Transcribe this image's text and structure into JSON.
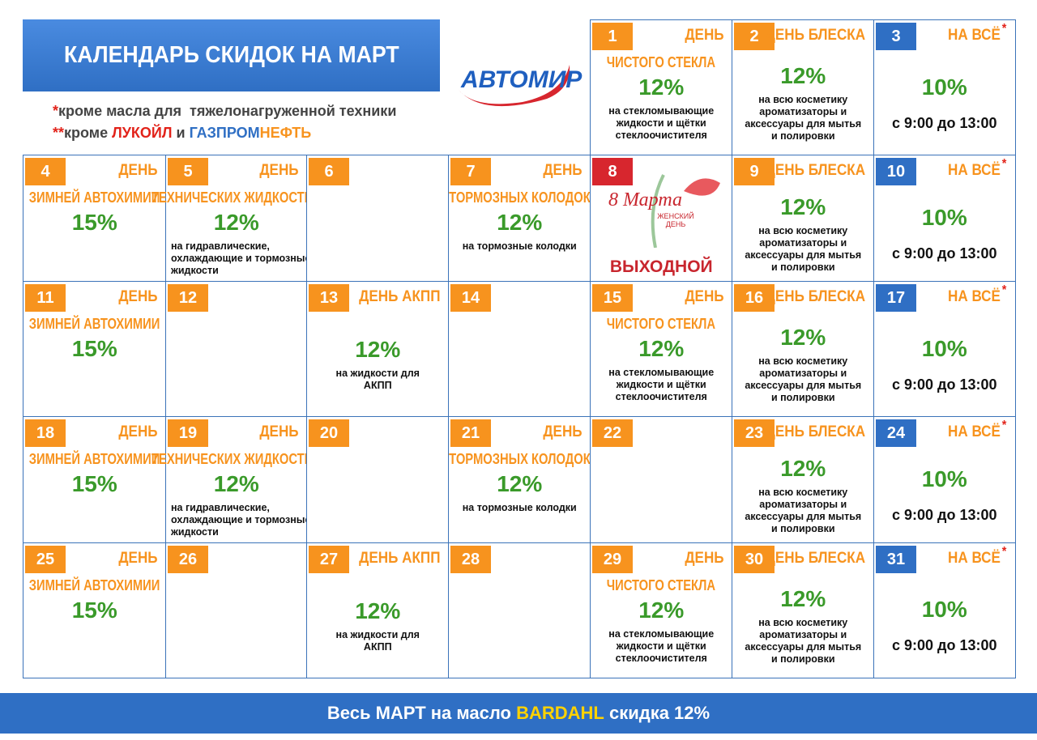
{
  "header": {
    "title": "КАЛЕНДАРЬ СКИДОК НА МАРТ",
    "logo": "АВТОМИР",
    "notes": [
      [
        "*",
        "кроме масла для  тяжелонагруженной техники"
      ],
      [
        "**",
        "кроме ",
        "ЛУКОЙЛ",
        " и ",
        "ГАЗПРОМ",
        "НЕФТЬ"
      ]
    ]
  },
  "calendar": {
    "cells": [
      {
        "day": "1",
        "color": "#f7931e",
        "head": "ДЕНЬ",
        "sub": "ЧИСТОГО СТЕКЛА",
        "pct": "12%",
        "desc": [
          "на стекломывающие",
          "жидкости и щётки",
          "стеклоочистителя"
        ]
      },
      {
        "day": "2",
        "color": "#f7931e",
        "head": "ДЕНЬ БЛЕСКА",
        "pct": "12%",
        "desc": [
          "на всю косметику",
          "ароматизаторы и",
          "аксессуары для мытья",
          "и полировки"
        ]
      },
      {
        "day": "3",
        "color": "#2f6fc4",
        "head": "НА ВСЁ",
        "mark": "*",
        "pct": "10%",
        "time": "с 9:00 до 13:00"
      },
      {
        "day": "4",
        "color": "#f7931e",
        "head": "ДЕНЬ",
        "sub": "ЗИМНЕЙ АВТОХИМИИ",
        "pct": "15%"
      },
      {
        "day": "5",
        "color": "#f7931e",
        "head": "ДЕНЬ",
        "sub": "ТЕХНИЧЕСКИХ ЖИДКОСТЕЙ",
        "pct": "12%",
        "desc": [
          "на гидравлические,",
          "охлаждающие и тормозные",
          "жидкости"
        ],
        "left": true
      },
      {
        "day": "6",
        "color": "#f7931e"
      },
      {
        "day": "7",
        "color": "#f7931e",
        "head": "ДЕНЬ",
        "sub": "ТОРМОЗНЫХ КОЛОДОК",
        "pct": "12%",
        "desc": [
          "на тормозные колодки"
        ]
      },
      {
        "day": "8",
        "color": "#d7262e",
        "art": [
          "8 Марта",
          "ЖЕНСКИЙ ДЕНЬ"
        ],
        "off": "ВЫХОДНОЙ"
      },
      {
        "day": "9",
        "color": "#f7931e",
        "head": "ДЕНЬ БЛЕСКА",
        "pct": "12%",
        "desc": [
          "на всю косметику",
          "ароматизаторы и",
          "аксессуары для мытья",
          "и полировки"
        ]
      },
      {
        "day": "10",
        "color": "#2f6fc4",
        "head": "НА ВСЁ",
        "mark": "*",
        "pct": "10%",
        "time": "с 9:00 до 13:00"
      },
      {
        "day": "11",
        "color": "#f7931e",
        "head": "ДЕНЬ",
        "sub": "ЗИМНЕЙ АВТОХИМИИ",
        "pct": "15%"
      },
      {
        "day": "12",
        "color": "#f7931e"
      },
      {
        "day": "13",
        "color": "#f7931e",
        "head": "ДЕНЬ АКПП",
        "pct": "12%",
        "desc": [
          "на жидкости для",
          "АКПП"
        ]
      },
      {
        "day": "14",
        "color": "#f7931e"
      },
      {
        "day": "15",
        "color": "#f7931e",
        "head": "ДЕНЬ",
        "sub": "ЧИСТОГО СТЕКЛА",
        "pct": "12%",
        "desc": [
          "на стекломывающие",
          "жидкости и щётки",
          "стеклоочистителя"
        ]
      },
      {
        "day": "16",
        "color": "#f7931e",
        "head": "ДЕНЬ БЛЕСКА",
        "pct": "12%",
        "desc": [
          "на всю косметику",
          "ароматизаторы и",
          "аксессуары для мытья",
          "и полировки"
        ]
      },
      {
        "day": "17",
        "color": "#2f6fc4",
        "head": "НА ВСЁ",
        "mark": "*",
        "pct": "10%",
        "time": "с 9:00 до 13:00"
      },
      {
        "day": "18",
        "color": "#f7931e",
        "head": "ДЕНЬ",
        "sub": "ЗИМНЕЙ АВТОХИМИИ",
        "pct": "15%"
      },
      {
        "day": "19",
        "color": "#f7931e",
        "head": "ДЕНЬ",
        "sub": "ТЕХНИЧЕСКИХ ЖИДКОСТЕЙ",
        "pct": "12%",
        "desc": [
          "на гидравлические,",
          "охлаждающие и тормозные",
          "жидкости"
        ],
        "left": true
      },
      {
        "day": "20",
        "color": "#f7931e"
      },
      {
        "day": "21",
        "color": "#f7931e",
        "head": "ДЕНЬ",
        "sub": "ТОРМОЗНЫХ КОЛОДОК",
        "pct": "12%",
        "desc": [
          "на тормозные колодки"
        ]
      },
      {
        "day": "22",
        "color": "#f7931e"
      },
      {
        "day": "23",
        "color": "#f7931e",
        "head": "ДЕНЬ БЛЕСКА",
        "pct": "12%",
        "desc": [
          "на всю косметику",
          "ароматизаторы и",
          "аксессуары для мытья",
          "и полировки"
        ]
      },
      {
        "day": "24",
        "color": "#2f6fc4",
        "head": "НА ВСЁ",
        "mark": "*",
        "pct": "10%",
        "time": "с 9:00 до 13:00"
      },
      {
        "day": "25",
        "color": "#f7931e",
        "head": "ДЕНЬ",
        "sub": "ЗИМНЕЙ АВТОХИМИИ",
        "pct": "15%"
      },
      {
        "day": "26",
        "color": "#f7931e"
      },
      {
        "day": "27",
        "color": "#f7931e",
        "head": "ДЕНЬ АКПП",
        "pct": "12%",
        "desc": [
          "на жидкости для",
          "АКПП"
        ]
      },
      {
        "day": "28",
        "color": "#f7931e"
      },
      {
        "day": "29",
        "color": "#f7931e",
        "head": "ДЕНЬ",
        "sub": "ЧИСТОГО СТЕКЛА",
        "pct": "12%",
        "desc": [
          "на стекломывающие",
          "жидкости и щётки",
          "стеклоочистителя"
        ]
      },
      {
        "day": "30",
        "color": "#f7931e",
        "head": "ДЕНЬ БЛЕСКА",
        "pct": "12%",
        "desc": [
          "на всю косметику",
          "ароматизаторы и",
          "аксессуары для мытья",
          "и полировки"
        ]
      },
      {
        "day": "31",
        "color": "#2f6fc4",
        "head": "НА ВСЁ",
        "mark": "*",
        "pct": "10%",
        "time": "с 9:00 до 13:00"
      }
    ]
  },
  "footer": [
    "Весь МАРТ на масло ",
    "BARDAHL",
    " скидка 12%"
  ]
}
